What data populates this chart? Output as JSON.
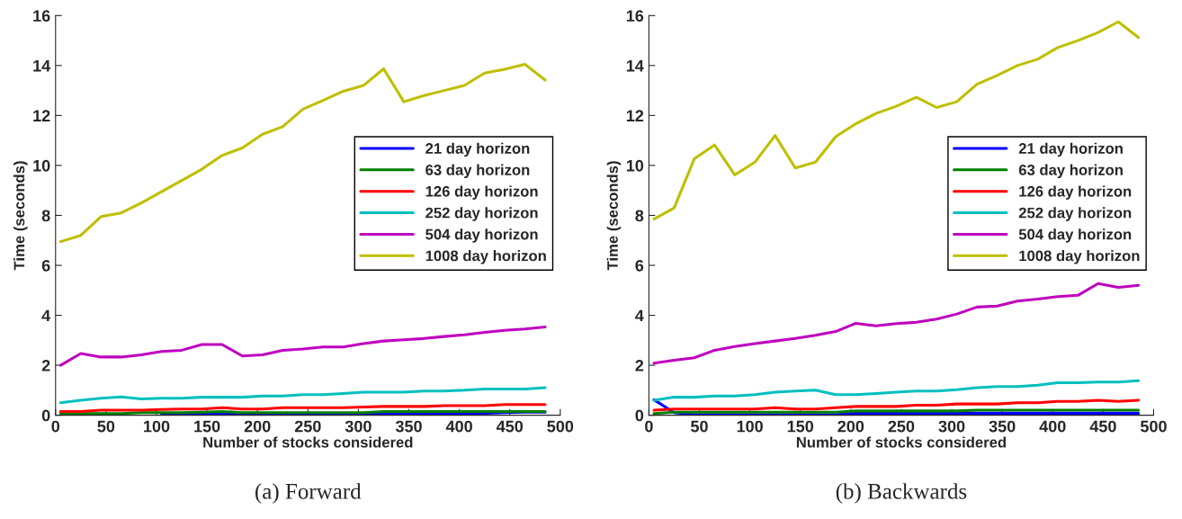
{
  "chart_data": [
    {
      "type": "line",
      "xlabel": "Number of stocks considered",
      "ylabel": "Time (seconds)",
      "xlim": [
        0,
        500
      ],
      "xticks": [
        0,
        50,
        100,
        150,
        200,
        250,
        300,
        350,
        400,
        450,
        500
      ],
      "ylim": [
        0,
        16
      ],
      "yticks": [
        0,
        2,
        4,
        6,
        8,
        10,
        12,
        14,
        16
      ],
      "grid": false,
      "legend": "right",
      "line_style": "solid",
      "marker": "none",
      "annotations": [
        "(a) Forward"
      ],
      "x": [
        5,
        25,
        45,
        65,
        85,
        105,
        125,
        145,
        165,
        185,
        205,
        225,
        245,
        265,
        285,
        305,
        325,
        345,
        365,
        385,
        405,
        425,
        445,
        465,
        485
      ],
      "series": [
        {
          "name": "21 day horizon",
          "color": "#0000ff",
          "values": [
            null,
            null,
            null,
            null,
            null,
            0.02,
            0.02,
            0.05,
            0.07,
            0.07,
            0.07,
            0.07,
            0.07,
            0.07,
            0.07,
            0.07,
            0.07,
            0.08,
            0.08,
            0.08,
            0.08,
            0.08,
            0.1,
            0.12,
            0.12
          ]
        },
        {
          "name": "63 day horizon",
          "color": "#008000",
          "values": [
            0.07,
            0.07,
            0.07,
            0.07,
            0.1,
            0.1,
            0.1,
            0.12,
            0.15,
            0.1,
            0.1,
            0.1,
            0.1,
            0.1,
            0.1,
            0.1,
            0.15,
            0.15,
            0.15,
            0.15,
            0.15,
            0.15,
            0.15,
            0.15,
            0.15
          ]
        },
        {
          "name": "126 day horizon",
          "color": "#ff0000",
          "values": [
            0.15,
            0.15,
            0.2,
            0.2,
            0.2,
            0.23,
            0.25,
            0.25,
            0.3,
            0.25,
            0.25,
            0.3,
            0.3,
            0.3,
            0.3,
            0.33,
            0.35,
            0.35,
            0.35,
            0.38,
            0.38,
            0.38,
            0.43,
            0.43,
            0.43
          ]
        },
        {
          "name": "252 day horizon",
          "color": "#00bfbf",
          "values": [
            0.5,
            0.6,
            0.68,
            0.73,
            0.65,
            0.68,
            0.68,
            0.72,
            0.72,
            0.72,
            0.77,
            0.77,
            0.82,
            0.82,
            0.87,
            0.92,
            0.92,
            0.92,
            0.97,
            0.97,
            1.0,
            1.05,
            1.05,
            1.05,
            1.1
          ]
        },
        {
          "name": "504 day horizon",
          "color": "#bf00bf",
          "values": [
            2.0,
            2.47,
            2.33,
            2.33,
            2.42,
            2.55,
            2.6,
            2.83,
            2.83,
            2.37,
            2.42,
            2.6,
            2.65,
            2.73,
            2.73,
            2.87,
            2.97,
            3.02,
            3.07,
            3.15,
            3.22,
            3.32,
            3.4,
            3.45,
            3.53
          ]
        },
        {
          "name": "1008 day horizon",
          "color": "#bfbf00",
          "values": [
            6.95,
            7.2,
            7.95,
            8.1,
            8.5,
            8.95,
            9.4,
            9.85,
            10.4,
            10.7,
            11.25,
            11.55,
            12.25,
            12.6,
            12.97,
            13.2,
            13.87,
            12.55,
            12.8,
            13.0,
            13.2,
            13.7,
            13.85,
            14.05,
            13.42
          ]
        }
      ]
    },
    {
      "type": "line",
      "xlabel": "Number of stocks considered",
      "ylabel": "Time (seconds)",
      "xlim": [
        0,
        500
      ],
      "xticks": [
        0,
        50,
        100,
        150,
        200,
        250,
        300,
        350,
        400,
        450,
        500
      ],
      "ylim": [
        0,
        16
      ],
      "yticks": [
        0,
        2,
        4,
        6,
        8,
        10,
        12,
        14,
        16
      ],
      "grid": false,
      "legend": "right",
      "line_style": "solid",
      "marker": "none",
      "annotations": [
        "(b) Backwards"
      ],
      "x": [
        5,
        25,
        45,
        65,
        85,
        105,
        125,
        145,
        165,
        185,
        205,
        225,
        245,
        265,
        285,
        305,
        325,
        345,
        365,
        385,
        405,
        425,
        445,
        465,
        485
      ],
      "series": [
        {
          "name": "21 day horizon",
          "color": "#0000ff",
          "values": [
            0.62,
            0.1,
            0.02,
            0.02,
            0.02,
            0.02,
            0.02,
            0.02,
            0.02,
            0.02,
            0.08,
            0.08,
            0.08,
            0.08,
            0.08,
            0.08,
            0.08,
            0.08,
            0.08,
            0.08,
            0.08,
            0.08,
            0.08,
            0.08,
            0.08
          ]
        },
        {
          "name": "63 day horizon",
          "color": "#008000",
          "values": [
            0.07,
            0.12,
            0.12,
            0.12,
            0.12,
            0.12,
            0.12,
            0.12,
            0.12,
            0.12,
            0.17,
            0.17,
            0.17,
            0.17,
            0.17,
            0.17,
            0.2,
            0.2,
            0.2,
            0.2,
            0.2,
            0.2,
            0.2,
            0.2,
            0.2
          ]
        },
        {
          "name": "126 day horizon",
          "color": "#ff0000",
          "values": [
            0.2,
            0.25,
            0.25,
            0.25,
            0.25,
            0.25,
            0.3,
            0.25,
            0.25,
            0.3,
            0.35,
            0.35,
            0.35,
            0.4,
            0.4,
            0.45,
            0.45,
            0.45,
            0.5,
            0.5,
            0.55,
            0.55,
            0.6,
            0.55,
            0.6
          ]
        },
        {
          "name": "252 day horizon",
          "color": "#00bfbf",
          "values": [
            0.6,
            0.72,
            0.72,
            0.77,
            0.77,
            0.82,
            0.92,
            0.97,
            1.0,
            0.82,
            0.82,
            0.87,
            0.92,
            0.97,
            0.97,
            1.02,
            1.1,
            1.15,
            1.15,
            1.2,
            1.3,
            1.3,
            1.33,
            1.33,
            1.38
          ]
        },
        {
          "name": "504 day horizon",
          "color": "#bf00bf",
          "values": [
            2.08,
            2.2,
            2.3,
            2.6,
            2.75,
            2.87,
            2.97,
            3.07,
            3.2,
            3.35,
            3.68,
            3.58,
            3.67,
            3.72,
            3.85,
            4.05,
            4.33,
            4.37,
            4.57,
            4.65,
            4.75,
            4.8,
            5.27,
            5.12,
            5.2
          ]
        },
        {
          "name": "1008 day horizon",
          "color": "#bfbf00",
          "values": [
            7.85,
            8.3,
            10.27,
            10.82,
            9.62,
            10.13,
            11.2,
            9.9,
            10.13,
            11.15,
            11.67,
            12.08,
            12.37,
            12.73,
            12.32,
            12.55,
            13.25,
            13.6,
            14.0,
            14.25,
            14.72,
            15.0,
            15.32,
            15.75,
            15.12
          ]
        }
      ]
    }
  ]
}
